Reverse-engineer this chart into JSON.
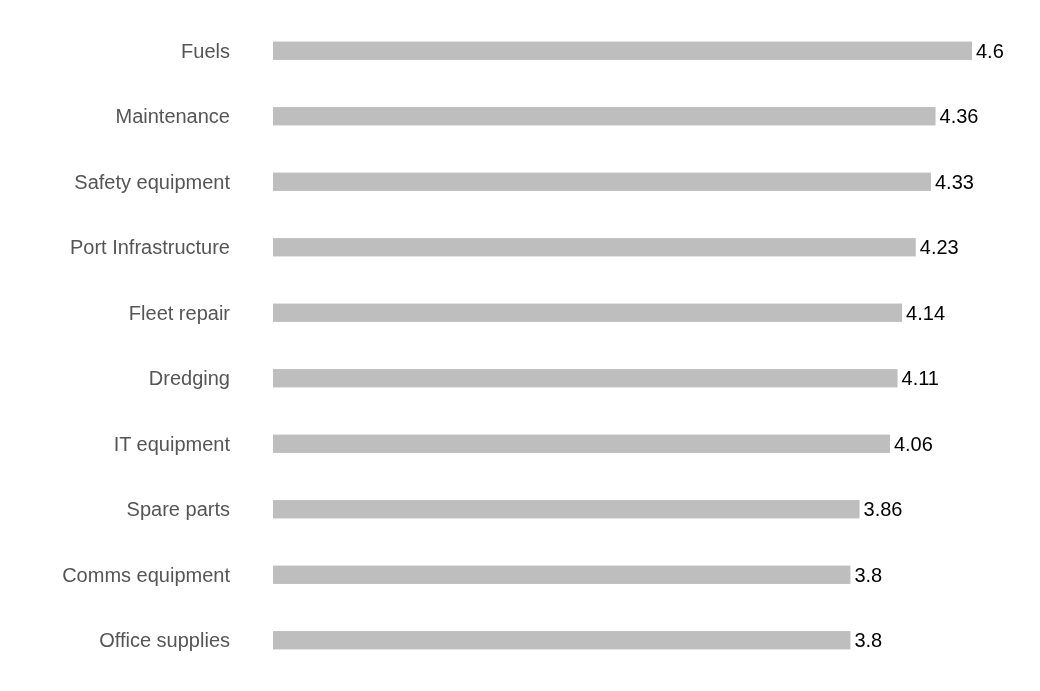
{
  "chart_data": {
    "type": "bar",
    "orientation": "horizontal",
    "data_labels": true,
    "categories": [
      "Fuels",
      "Maintenance",
      "Safety equipment",
      "Port Infrastructure",
      "Fleet repair",
      "Dredging",
      "IT equipment",
      "Spare parts",
      "Comms equipment",
      "Office supplies"
    ],
    "values": [
      4.6,
      4.36,
      4.33,
      4.23,
      4.14,
      4.11,
      4.06,
      3.86,
      3.8,
      3.8
    ],
    "color": "#bebebe"
  }
}
